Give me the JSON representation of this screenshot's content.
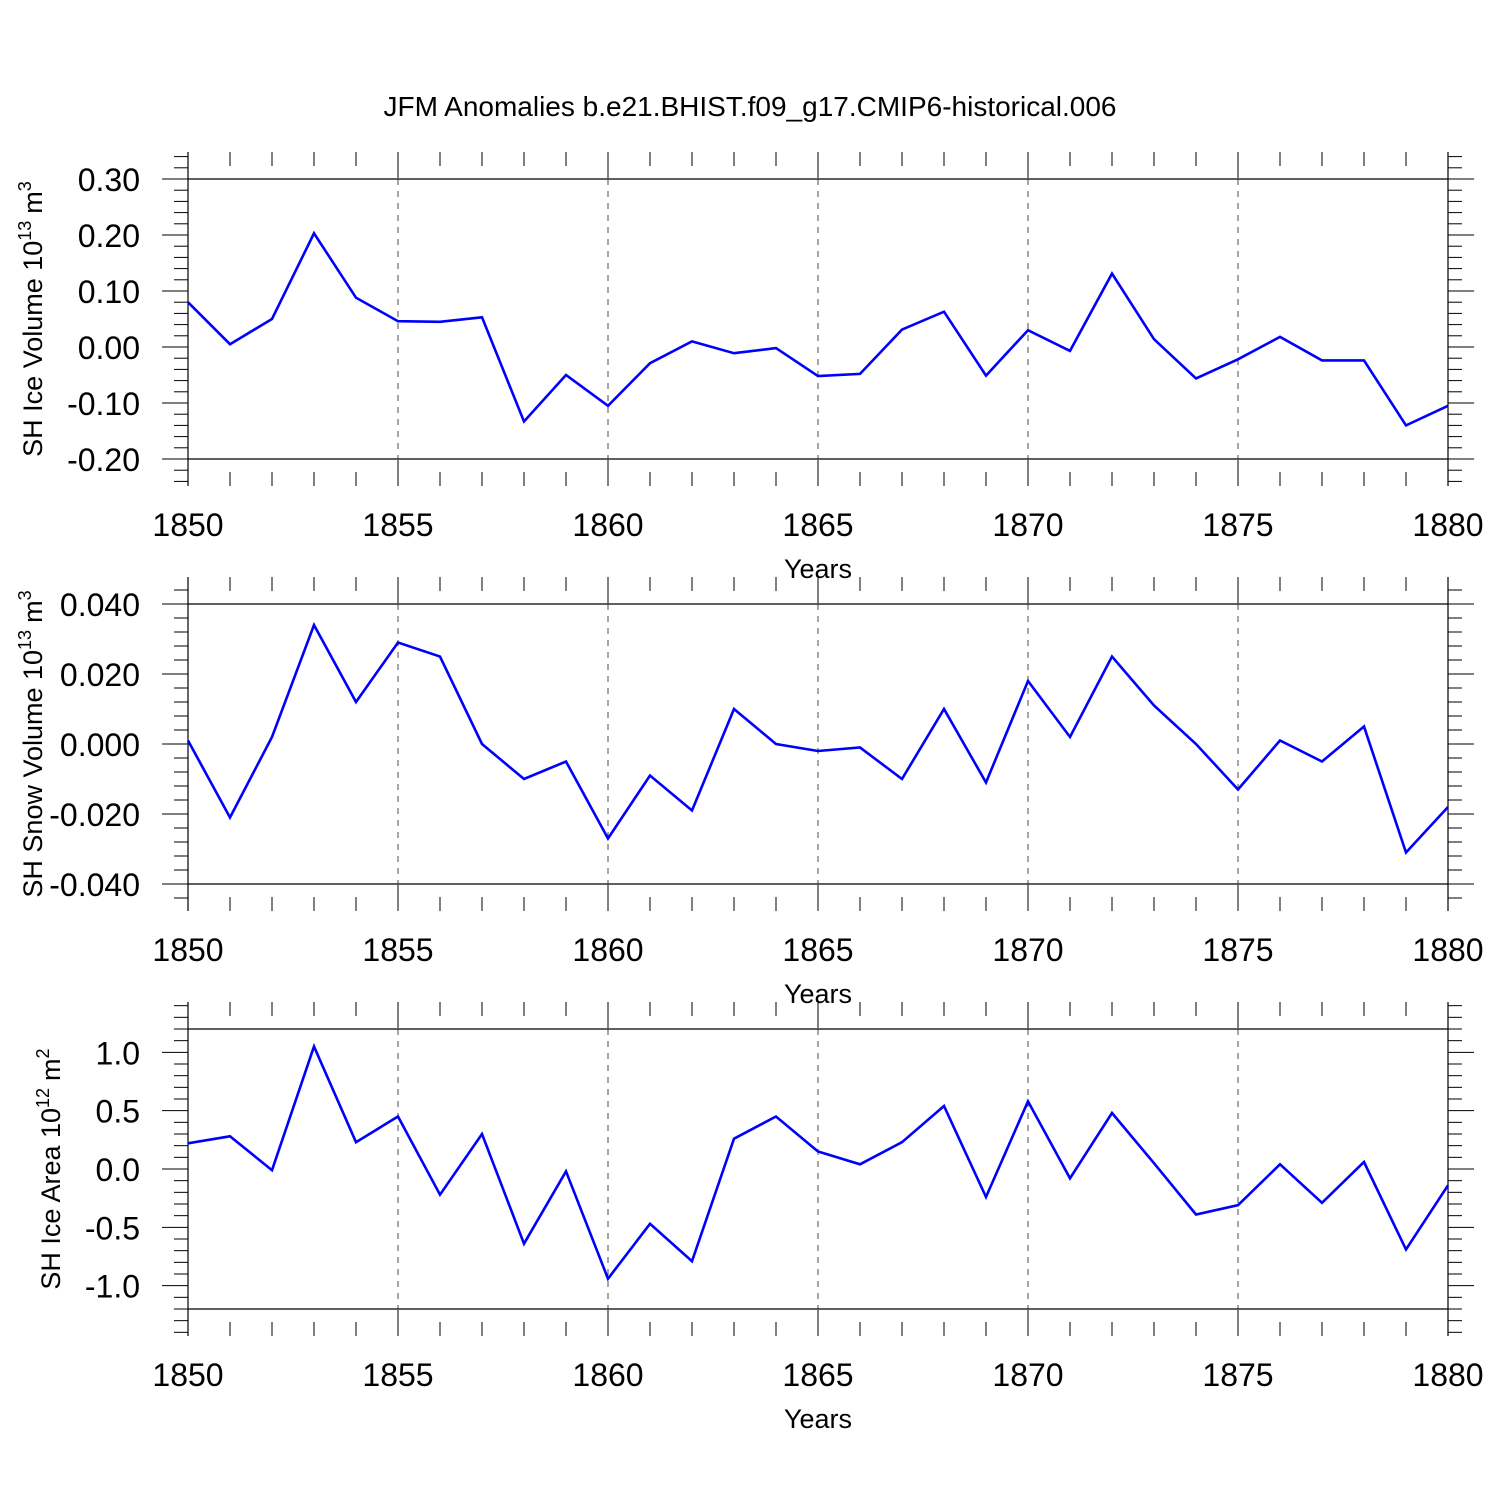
{
  "title": "JFM Anomalies b.e21.BHIST.f09_g17.CMIP6-historical.006",
  "colors": {
    "line": "#0000ff",
    "axis": "#000000",
    "grid": "#000000"
  },
  "chart_data": [
    {
      "type": "line",
      "ylabel": "SH Ice Volume 10",
      "ylabel_exponent": "13",
      "ylabel_unit": "m",
      "ylabel_unit_exponent": "3",
      "xlabel": "Years",
      "xlim": [
        1850,
        1880
      ],
      "ylim": [
        -0.2,
        0.3
      ],
      "yticks": [
        "0.30",
        "0.20",
        "0.10",
        "0.00",
        "-0.10",
        "-0.20"
      ],
      "ytick_values": [
        0.3,
        0.2,
        0.1,
        0.0,
        -0.1,
        -0.2
      ],
      "xticks": [
        "1850",
        "1855",
        "1860",
        "1865",
        "1870",
        "1875",
        "1880"
      ],
      "xtick_values": [
        1850,
        1855,
        1860,
        1865,
        1870,
        1875,
        1880
      ],
      "grid": "vertical dashed at major x ticks",
      "x": [
        1850,
        1851,
        1852,
        1853,
        1854,
        1855,
        1856,
        1857,
        1858,
        1859,
        1860,
        1861,
        1862,
        1863,
        1864,
        1865,
        1866,
        1867,
        1868,
        1869,
        1870,
        1871,
        1872,
        1873,
        1874,
        1875,
        1876,
        1877,
        1878,
        1879,
        1880
      ],
      "series": [
        {
          "values": [
            0.08,
            0.005,
            0.05,
            0.203,
            0.088,
            0.046,
            0.045,
            0.053,
            -0.133,
            -0.05,
            -0.105,
            -0.029,
            0.01,
            -0.011,
            -0.002,
            -0.052,
            -0.048,
            0.031,
            0.063,
            -0.051,
            0.03,
            -0.007,
            0.131,
            0.014,
            -0.056,
            -0.022,
            0.018,
            -0.024,
            -0.024,
            -0.14,
            -0.105
          ]
        }
      ]
    },
    {
      "type": "line",
      "ylabel": "SH Snow Volume 10",
      "ylabel_exponent": "13",
      "ylabel_unit": "m",
      "ylabel_unit_exponent": "3",
      "xlabel": "Years",
      "xlim": [
        1850,
        1880
      ],
      "ylim": [
        -0.04,
        0.04
      ],
      "yticks": [
        "0.040",
        "0.020",
        "0.000",
        "-0.020",
        "-0.040"
      ],
      "ytick_values": [
        0.04,
        0.02,
        0.0,
        -0.02,
        -0.04
      ],
      "xticks": [
        "1850",
        "1855",
        "1860",
        "1865",
        "1870",
        "1875",
        "1880"
      ],
      "xtick_values": [
        1850,
        1855,
        1860,
        1865,
        1870,
        1875,
        1880
      ],
      "grid": "vertical dashed at major x ticks",
      "x": [
        1850,
        1851,
        1852,
        1853,
        1854,
        1855,
        1856,
        1857,
        1858,
        1859,
        1860,
        1861,
        1862,
        1863,
        1864,
        1865,
        1866,
        1867,
        1868,
        1869,
        1870,
        1871,
        1872,
        1873,
        1874,
        1875,
        1876,
        1877,
        1878,
        1879,
        1880
      ],
      "series": [
        {
          "values": [
            0.001,
            -0.021,
            0.002,
            0.034,
            0.012,
            0.029,
            0.025,
            0.0,
            -0.01,
            -0.005,
            -0.027,
            -0.009,
            -0.019,
            0.01,
            0.0,
            -0.002,
            -0.001,
            -0.01,
            0.01,
            -0.011,
            0.018,
            0.002,
            0.025,
            0.011,
            0.0,
            -0.013,
            0.001,
            -0.005,
            0.005,
            -0.031,
            -0.018
          ]
        }
      ]
    },
    {
      "type": "line",
      "ylabel": "SH Ice Area 10",
      "ylabel_exponent": "12",
      "ylabel_unit": "m",
      "ylabel_unit_exponent": "2",
      "xlabel": "Years",
      "xlim": [
        1850,
        1880
      ],
      "ylim": [
        -1.2,
        1.2
      ],
      "yticks": [
        "1.0",
        "0.5",
        "0.0",
        "-0.5",
        "-1.0"
      ],
      "ytick_values": [
        1.0,
        0.5,
        0.0,
        -0.5,
        -1.0
      ],
      "xticks": [
        "1850",
        "1855",
        "1860",
        "1865",
        "1870",
        "1875",
        "1880"
      ],
      "xtick_values": [
        1850,
        1855,
        1860,
        1865,
        1870,
        1875,
        1880
      ],
      "grid": "vertical dashed at major x ticks",
      "x": [
        1850,
        1851,
        1852,
        1853,
        1854,
        1855,
        1856,
        1857,
        1858,
        1859,
        1860,
        1861,
        1862,
        1863,
        1864,
        1865,
        1866,
        1867,
        1868,
        1869,
        1870,
        1871,
        1872,
        1873,
        1874,
        1875,
        1876,
        1877,
        1878,
        1879,
        1880
      ],
      "series": [
        {
          "values": [
            0.22,
            0.28,
            -0.01,
            1.05,
            0.23,
            0.45,
            -0.22,
            0.3,
            -0.64,
            -0.02,
            -0.94,
            -0.47,
            -0.79,
            0.26,
            0.45,
            0.15,
            0.04,
            0.23,
            0.54,
            -0.24,
            0.58,
            -0.08,
            0.48,
            0.05,
            -0.39,
            -0.31,
            0.04,
            -0.29,
            0.06,
            -0.69,
            -0.14
          ]
        }
      ]
    }
  ]
}
